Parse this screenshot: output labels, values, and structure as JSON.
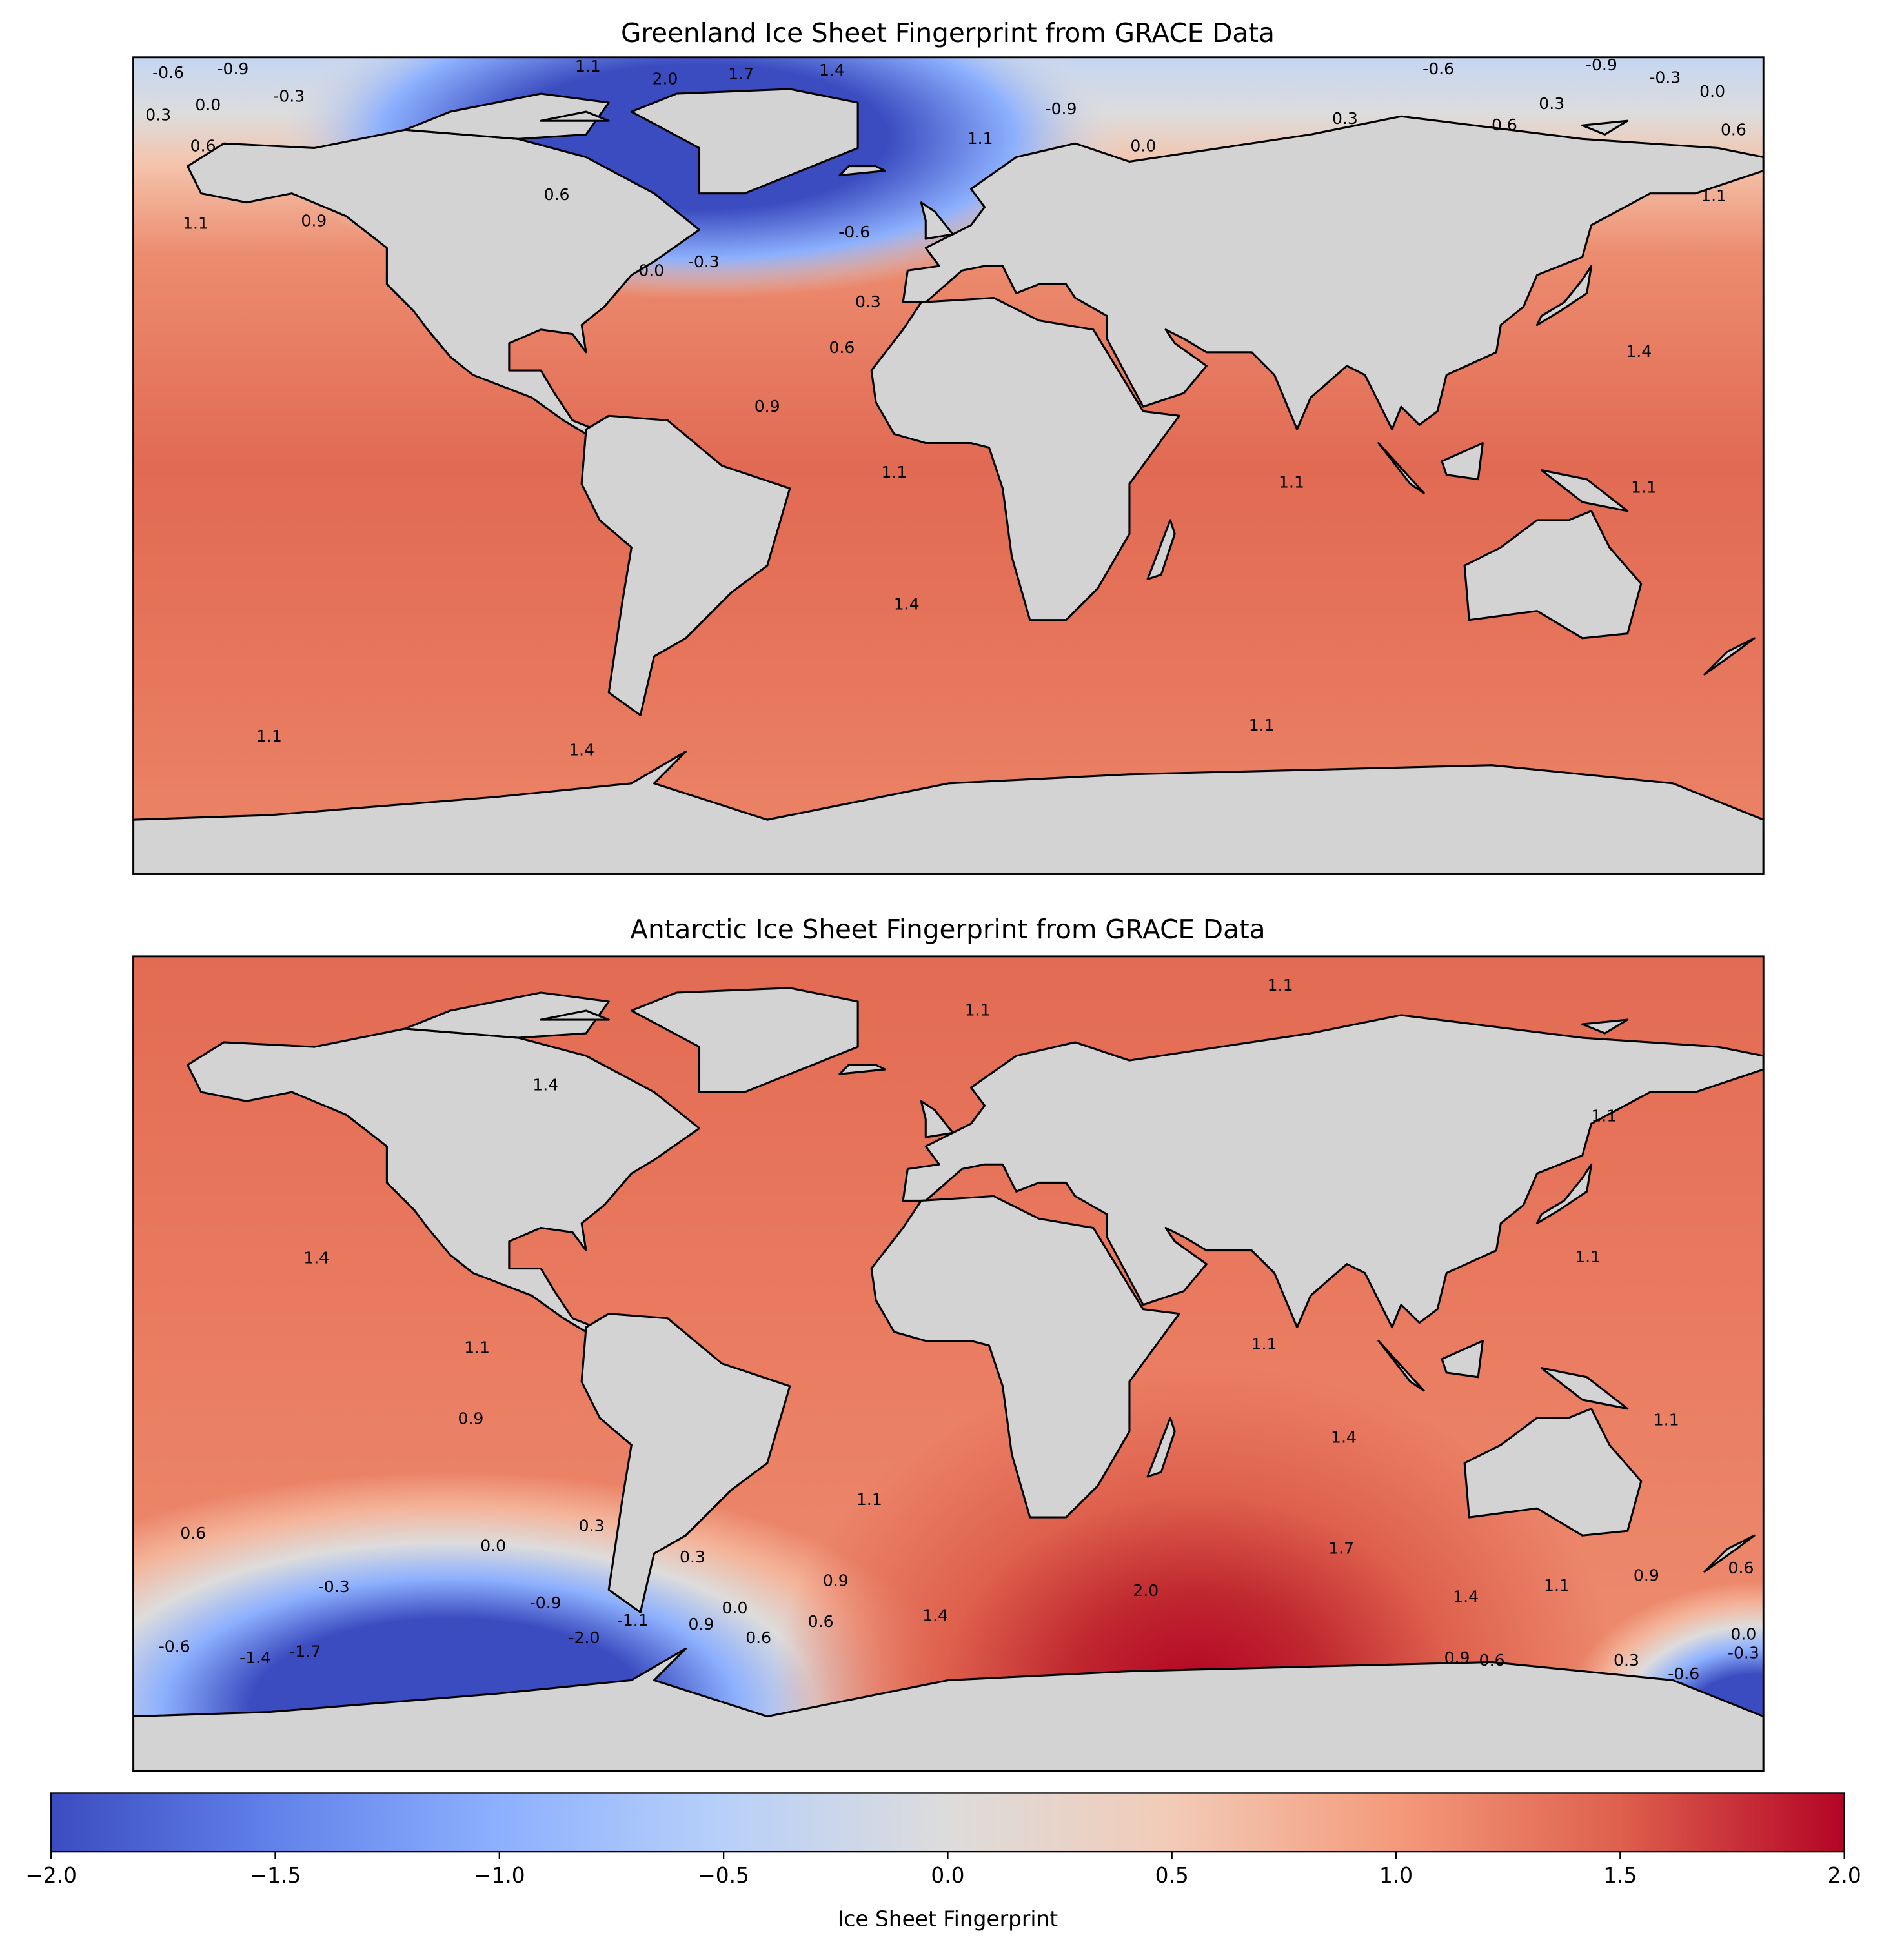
{
  "chart_data": [
    {
      "type": "map",
      "title": "Greenland Ice Sheet Fingerprint from GRACE Data",
      "contour_labels": [
        "-0.6",
        "-0.9",
        "1.1",
        "2.0",
        "1.7",
        "1.4",
        "-0.3",
        "0.3",
        "0.0",
        "0.6",
        "0.6",
        "1.1",
        "0.9",
        "0.0",
        "-0.3",
        "-0.6",
        "0.3",
        "0.6",
        "0.9",
        "1.1",
        "1.4",
        "1.4",
        "1.1",
        "1.1",
        "1.1",
        "1.1",
        "1.4",
        "0.3",
        "0.0",
        "0.6",
        "0.6",
        "0.3",
        "-0.6",
        "-0.9",
        "-0.3",
        "1.1",
        "0.0",
        "1.1",
        "-0.9"
      ]
    },
    {
      "type": "map",
      "title": "Antarctic Ice Sheet Fingerprint from GRACE Data",
      "contour_labels": [
        "1.1",
        "1.1",
        "1.4",
        "1.4",
        "1.1",
        "0.9",
        "0.6",
        "0.3",
        "0.0",
        "-0.3",
        "-0.9",
        "-1.1",
        "-2.0",
        "-0.6",
        "-1.4",
        "-1.7",
        "0.3",
        "0.0",
        "0.9",
        "0.6",
        "1.1",
        "0.9",
        "0.6",
        "1.4",
        "2.0",
        "1.7",
        "1.4",
        "1.1",
        "1.4",
        "1.1",
        "0.9",
        "0.6",
        "0.0",
        "-0.3",
        "-0.6",
        "0.3",
        "1.1",
        "1.1",
        "1.1",
        "0.9",
        "0.6"
      ]
    },
    {
      "type": "colorbar",
      "cmap": "coolwarm",
      "xlabel": "Ice Sheet Fingerprint",
      "xlim": [
        -2,
        2
      ],
      "xticks": [
        {
          "value": -2,
          "label": "−2.0"
        },
        {
          "value": -1.5,
          "label": "−1.5"
        },
        {
          "value": -1,
          "label": "−1.0"
        },
        {
          "value": -0.5,
          "label": "−0.5"
        },
        {
          "value": 0,
          "label": "0.0"
        },
        0.5,
        {
          "value": 1,
          "label": "1.0"
        },
        1.5,
        {
          "value": 2,
          "label": "2.0"
        }
      ]
    }
  ]
}
